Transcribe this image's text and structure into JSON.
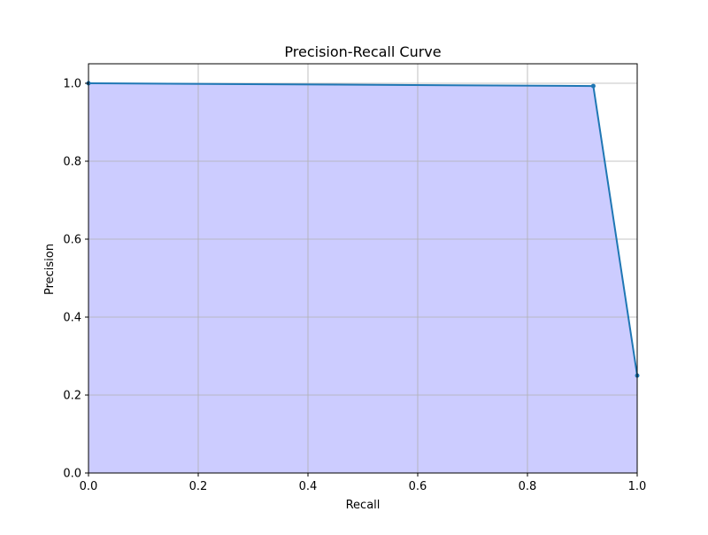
{
  "chart_data": {
    "type": "area",
    "title": "Precision-Recall Curve",
    "xlabel": "Recall",
    "ylabel": "Precision",
    "xlim": [
      0.0,
      1.0
    ],
    "ylim": [
      0.0,
      1.05
    ],
    "xticks": [
      0.0,
      0.2,
      0.4,
      0.6,
      0.8,
      1.0
    ],
    "yticks": [
      0.0,
      0.2,
      0.4,
      0.6,
      0.8,
      1.0
    ],
    "grid": true,
    "series": [
      {
        "x": [
          0.0,
          0.92,
          1.0
        ],
        "y": [
          1.0,
          0.993,
          0.25
        ],
        "line_color": "#1f77b4",
        "fill_color": "#ccccff"
      }
    ]
  }
}
